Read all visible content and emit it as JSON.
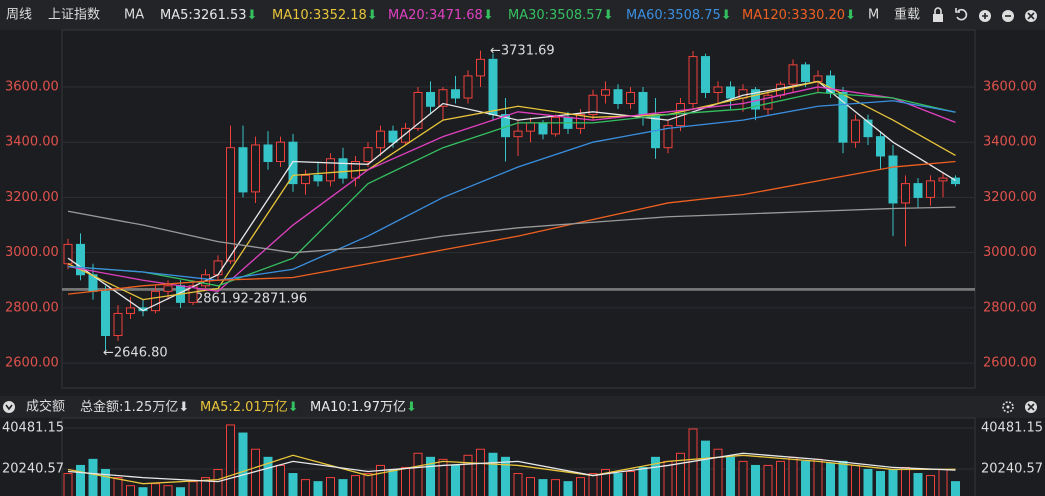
{
  "header": {
    "period": "周线",
    "symbol": "上证指数",
    "ma_label": "MA",
    "reload": "重载",
    "truncated_legend": "M"
  },
  "down_arrow": "⬇",
  "chart_data": {
    "type": "candlestick",
    "up_color": "#f0403c",
    "down_color": "#35c4c8",
    "ylim": [
      2510,
      3770
    ],
    "yticks": [
      {
        "value": 2600,
        "label": "2600.00"
      },
      {
        "value": 2800,
        "label": "2800.00"
      },
      {
        "value": 3000,
        "label": "3000.00"
      },
      {
        "value": 3200,
        "label": "3200.00"
      },
      {
        "value": 3400,
        "label": "3400.00"
      },
      {
        "value": 3600,
        "label": "3600.00"
      }
    ],
    "grid": true,
    "open": [
      2960,
      3030,
      2920,
      2860,
      2700,
      2780,
      2800,
      2790,
      2860,
      2880,
      2820,
      2880,
      2920,
      2970,
      3380,
      3220,
      3390,
      3330,
      3400,
      3250,
      3280,
      3260,
      3340,
      3270,
      3330,
      3380,
      3440,
      3400,
      3450,
      3580,
      3530,
      3590,
      3560,
      3640,
      3700,
      3500,
      3420,
      3440,
      3470,
      3430,
      3490,
      3450,
      3500,
      3570,
      3590,
      3540,
      3580,
      3500,
      3380,
      3460,
      3540,
      3710,
      3580,
      3600,
      3560,
      3590,
      3520,
      3570,
      3610,
      3680,
      3620,
      3640,
      3580,
      3400,
      3480,
      3420,
      3350,
      3180,
      3250,
      3200,
      3260,
      3270
    ],
    "high": [
      3050,
      3070,
      2960,
      2880,
      2810,
      2840,
      2830,
      2880,
      2900,
      2900,
      2900,
      2940,
      2990,
      3460,
      3460,
      3420,
      3440,
      3420,
      3430,
      3300,
      3330,
      3360,
      3380,
      3350,
      3400,
      3460,
      3460,
      3470,
      3600,
      3620,
      3600,
      3640,
      3660,
      3731.69,
      3720,
      3560,
      3480,
      3490,
      3480,
      3500,
      3510,
      3520,
      3590,
      3620,
      3610,
      3600,
      3600,
      3560,
      3480,
      3560,
      3730,
      3720,
      3620,
      3620,
      3610,
      3600,
      3590,
      3620,
      3700,
      3690,
      3660,
      3660,
      3600,
      3500,
      3500,
      3440,
      3390,
      3280,
      3270,
      3280,
      3290,
      3280
    ],
    "low": [
      2940,
      2900,
      2830,
      2646.8,
      2680,
      2760,
      2770,
      2780,
      2830,
      2800,
      2810,
      2870,
      2900,
      2960,
      3200,
      3180,
      3300,
      3310,
      3220,
      3210,
      3240,
      3240,
      3250,
      3240,
      3310,
      3350,
      3380,
      3390,
      3440,
      3500,
      3480,
      3540,
      3540,
      3600,
      3480,
      3330,
      3350,
      3400,
      3410,
      3420,
      3430,
      3430,
      3480,
      3540,
      3520,
      3520,
      3460,
      3340,
      3360,
      3440,
      3520,
      3560,
      3540,
      3520,
      3510,
      3480,
      3500,
      3560,
      3580,
      3600,
      3580,
      3560,
      3360,
      3380,
      3390,
      3300,
      3060,
      3023,
      3160,
      3170,
      3200,
      3240
    ],
    "close": [
      3030,
      2920,
      2860,
      2700,
      2780,
      2800,
      2790,
      2860,
      2880,
      2820,
      2880,
      2920,
      2970,
      3380,
      3220,
      3390,
      3330,
      3400,
      3250,
      3280,
      3260,
      3340,
      3270,
      3330,
      3380,
      3440,
      3400,
      3450,
      3580,
      3530,
      3590,
      3560,
      3640,
      3700,
      3500,
      3420,
      3440,
      3470,
      3430,
      3490,
      3450,
      3500,
      3570,
      3590,
      3540,
      3580,
      3500,
      3380,
      3460,
      3540,
      3710,
      3580,
      3600,
      3560,
      3590,
      3520,
      3570,
      3610,
      3680,
      3620,
      3640,
      3580,
      3400,
      3480,
      3420,
      3350,
      3180,
      3250,
      3200,
      3260,
      3270,
      3250
    ],
    "ma_x": [
      0,
      6,
      12,
      18,
      24,
      30,
      36,
      42,
      48,
      54,
      60,
      66,
      71
    ],
    "series": [
      {
        "legend": "MA5:3261.53",
        "color": "#e8e8e8",
        "values": [
          2980,
          2790,
          2920,
          3330,
          3320,
          3540,
          3480,
          3510,
          3480,
          3570,
          3620,
          3400,
          3261.53
        ]
      },
      {
        "legend": "MA10:3352.18",
        "color": "#e8c53a",
        "values": [
          2960,
          2830,
          2870,
          3280,
          3300,
          3480,
          3530,
          3490,
          3500,
          3560,
          3620,
          3480,
          3352.18
        ]
      },
      {
        "legend": "MA20:3471.68",
        "color": "#e040c0",
        "values": [
          2950,
          2900,
          2860,
          3100,
          3300,
          3420,
          3510,
          3480,
          3510,
          3540,
          3600,
          3560,
          3471.68
        ]
      },
      {
        "legend": "MA30:3508.57",
        "color": "#35c060",
        "values": [
          2950,
          2930,
          2880,
          2980,
          3250,
          3380,
          3470,
          3470,
          3500,
          3520,
          3580,
          3560,
          3508.57
        ]
      },
      {
        "legend": "MA60:3508.75",
        "color": "#3a8fe0",
        "values": [
          2950,
          2930,
          2900,
          2940,
          3060,
          3200,
          3310,
          3400,
          3450,
          3480,
          3530,
          3550,
          3508.75
        ]
      },
      {
        "legend": "MA120:3330.20",
        "color": "#f06020",
        "values": [
          2850,
          2880,
          2900,
          2910,
          2960,
          3010,
          3060,
          3120,
          3180,
          3210,
          3260,
          3310,
          3330.2
        ]
      },
      {
        "color": "#9a9a9a",
        "values": [
          3150,
          3100,
          3040,
          3000,
          3020,
          3060,
          3090,
          3110,
          3130,
          3140,
          3150,
          3160,
          3165
        ]
      }
    ],
    "band": [
      2861.92,
      2871.96
    ],
    "annotations": {
      "high": "←3731.69",
      "low": "←2646.80",
      "band": "2861.92-2871.96"
    }
  },
  "volume_chart": {
    "type": "bar",
    "title": "成交额",
    "total": "总金额:1.25万亿",
    "ylim": [
      0,
      40481.15
    ],
    "yticks": [
      {
        "value": 20240.57,
        "label": "20240.57"
      },
      {
        "value": 40481.15,
        "label": "40481.15"
      }
    ],
    "values": [
      18000,
      22000,
      25000,
      20000,
      16000,
      12000,
      11000,
      13000,
      12000,
      11000,
      14000,
      16000,
      20000,
      42000,
      38000,
      30000,
      26000,
      22000,
      18000,
      15000,
      14000,
      16000,
      15000,
      17000,
      18000,
      22000,
      20000,
      21000,
      28000,
      26000,
      25000,
      22000,
      27000,
      30000,
      28000,
      26000,
      18000,
      16000,
      15000,
      15000,
      14000,
      16000,
      18000,
      20000,
      18000,
      19000,
      21000,
      26000,
      24000,
      28000,
      40000,
      34000,
      30000,
      26000,
      24000,
      22000,
      22000,
      24000,
      26000,
      24000,
      25000,
      23000,
      24000,
      22000,
      20000,
      19000,
      20000,
      21000,
      18000,
      17000,
      20000,
      14000
    ],
    "series": [
      {
        "legend": "MA5:2.01万亿",
        "color": "#e8c53a",
        "values": [
          20000,
          13000,
          15000,
          27000,
          17000,
          24000,
          22000,
          17000,
          24000,
          27000,
          24000,
          20000,
          20100
        ]
      },
      {
        "legend": "MA10:1.97万亿",
        "color": "#e8e8e8",
        "values": [
          19000,
          16000,
          14000,
          24000,
          19000,
          22000,
          24000,
          17000,
          22000,
          28000,
          25000,
          21000,
          19700
        ]
      }
    ]
  }
}
